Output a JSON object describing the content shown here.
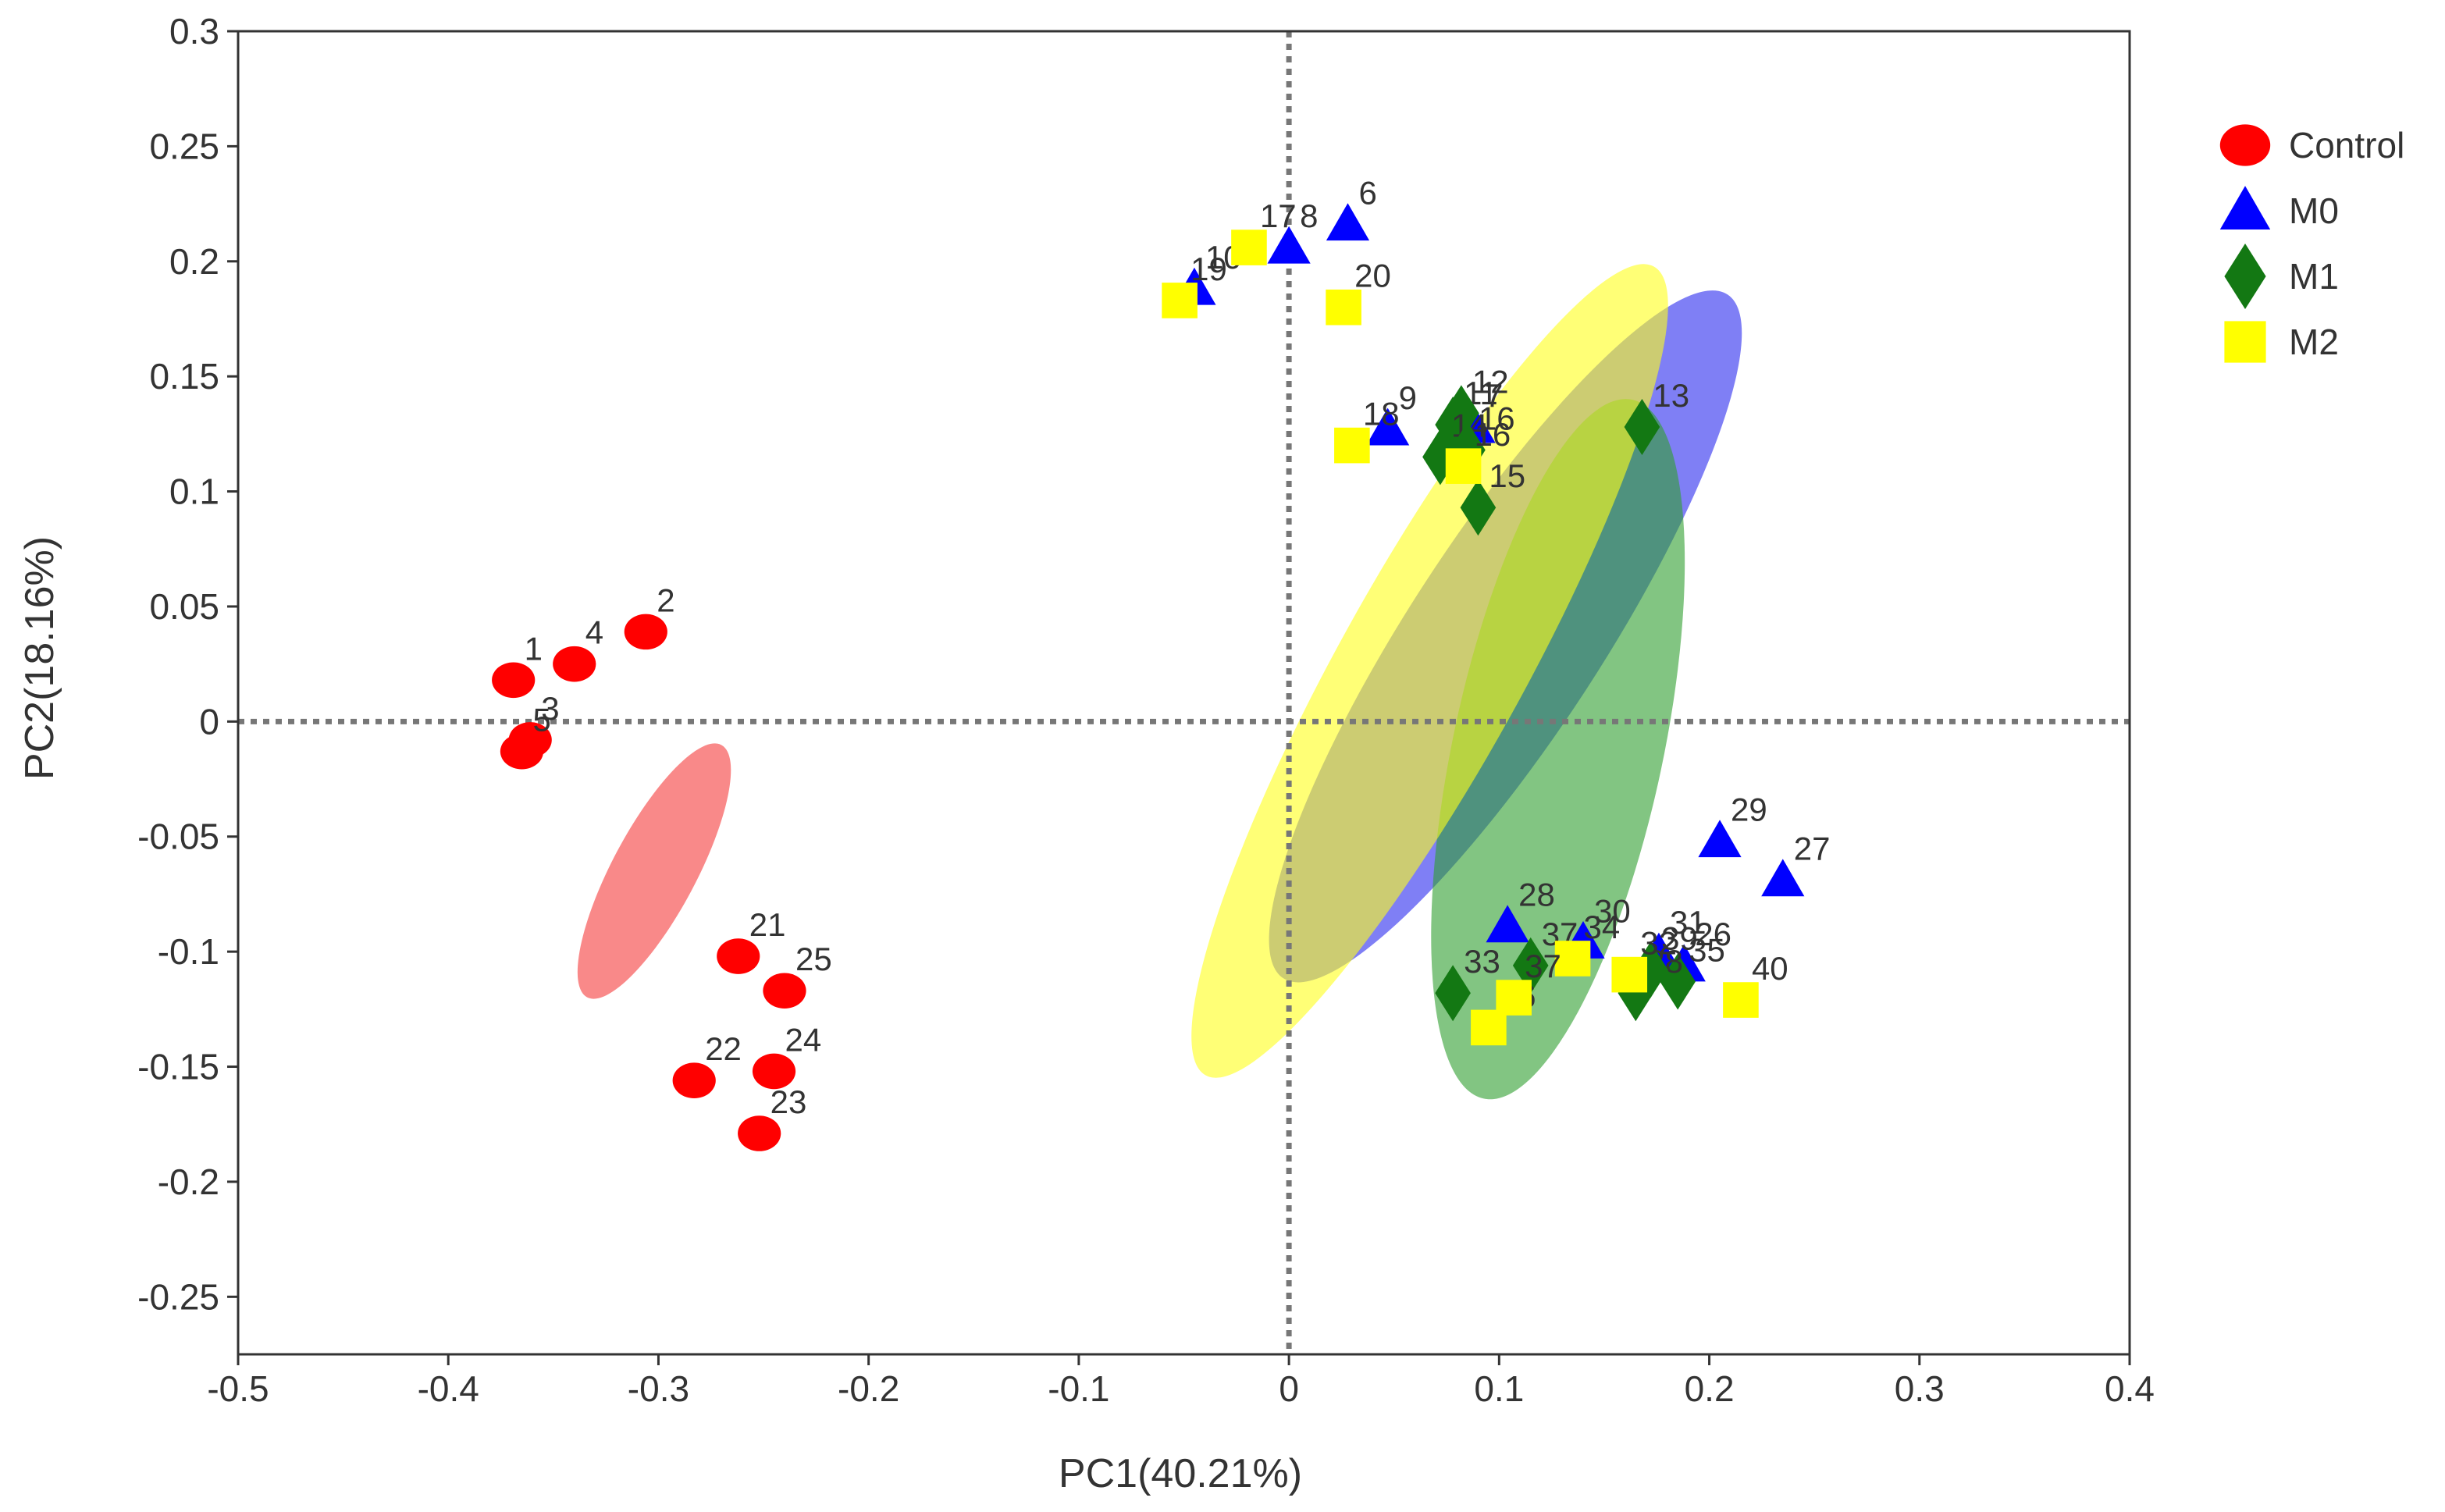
{
  "chart_data": {
    "type": "scatter",
    "title": "",
    "xlabel": "PC1(40.21%)",
    "ylabel": "PC2(18.16%)",
    "xlim": [
      -0.5,
      0.4
    ],
    "ylim": [
      -0.275,
      0.3
    ],
    "xticks": [
      "-0.5",
      "-0.4",
      "-0.3",
      "-0.2",
      "-0.1",
      "0",
      "0.1",
      "0.2",
      "0.3",
      "0.4"
    ],
    "yticks": [
      "0.3",
      "0.25",
      "0.2",
      "0.15",
      "0.1",
      "0.05",
      "0",
      "-0.05",
      "-0.1",
      "-0.15",
      "-0.2",
      "-0.25"
    ],
    "xtick_values": [
      -0.5,
      -0.4,
      -0.3,
      -0.2,
      -0.1,
      0,
      0.1,
      0.2,
      0.3,
      0.4
    ],
    "ytick_values": [
      0.3,
      0.25,
      0.2,
      0.15,
      0.1,
      0.05,
      0,
      -0.05,
      -0.1,
      -0.15,
      -0.2,
      -0.25
    ],
    "reference_lines": {
      "x": 0,
      "y": 0,
      "style": "dotted"
    },
    "legend_position": "right",
    "series": [
      {
        "name": "Control",
        "marker": "circle",
        "color": "#ff0000",
        "ellipse_color": "#f53b3b",
        "points": [
          {
            "label": "1",
            "x": -0.369,
            "y": 0.018
          },
          {
            "label": "2",
            "x": -0.306,
            "y": 0.039
          },
          {
            "label": "3",
            "x": -0.361,
            "y": -0.008
          },
          {
            "label": "4",
            "x": -0.34,
            "y": 0.025
          },
          {
            "label": "5",
            "x": -0.365,
            "y": -0.013
          },
          {
            "label": "21",
            "x": -0.262,
            "y": -0.102
          },
          {
            "label": "22",
            "x": -0.283,
            "y": -0.156
          },
          {
            "label": "23",
            "x": -0.252,
            "y": -0.179
          },
          {
            "label": "24",
            "x": -0.245,
            "y": -0.152
          },
          {
            "label": "25",
            "x": -0.24,
            "y": -0.117
          }
        ],
        "ellipse": {
          "cx": -0.302,
          "cy": -0.065,
          "rx": 0.068,
          "ry": 0.02,
          "angle": -62
        }
      },
      {
        "name": "M0",
        "marker": "triangle",
        "color": "#0000ff",
        "ellipse_color": "#2a2aee",
        "points": [
          {
            "label": "6",
            "x": 0.028,
            "y": 0.216
          },
          {
            "label": "7",
            "x": 0.088,
            "y": 0.128
          },
          {
            "label": "8",
            "x": 0.0,
            "y": 0.206
          },
          {
            "label": "9",
            "x": 0.047,
            "y": 0.127
          },
          {
            "label": "10",
            "x": -0.045,
            "y": 0.188
          },
          {
            "label": "26",
            "x": 0.188,
            "y": -0.106
          },
          {
            "label": "27",
            "x": 0.235,
            "y": -0.069
          },
          {
            "label": "28",
            "x": 0.104,
            "y": -0.089
          },
          {
            "label": "29",
            "x": 0.205,
            "y": -0.052
          },
          {
            "label": "30",
            "x": 0.14,
            "y": -0.096
          },
          {
            "label": "31",
            "x": 0.176,
            "y": -0.101
          }
        ],
        "ellipse": {
          "cx": 0.103,
          "cy": 0.037,
          "rx": 0.194,
          "ry": 0.046,
          "angle": -57
        }
      },
      {
        "name": "M1",
        "marker": "diamond",
        "color": "#137813",
        "ellipse_color": "#2e9e2e",
        "points": [
          {
            "label": "11",
            "x": 0.078,
            "y": 0.129
          },
          {
            "label": "12",
            "x": 0.082,
            "y": 0.134
          },
          {
            "label": "13",
            "x": 0.168,
            "y": 0.128
          },
          {
            "label": "14",
            "x": 0.072,
            "y": 0.115
          },
          {
            "label": "15",
            "x": 0.09,
            "y": 0.093
          },
          {
            "label": "16",
            "x": 0.085,
            "y": 0.118
          },
          {
            "label": "33",
            "x": 0.078,
            "y": -0.118
          },
          {
            "label": "35",
            "x": 0.185,
            "y": -0.113
          },
          {
            "label": "37",
            "x": 0.115,
            "y": -0.106
          },
          {
            "label": "38",
            "x": 0.165,
            "y": -0.118
          },
          {
            "label": "39",
            "x": 0.172,
            "y": -0.108
          }
        ],
        "ellipse": {
          "cx": 0.128,
          "cy": -0.012,
          "rx": 0.17,
          "ry": 0.05,
          "angle": -78
        }
      },
      {
        "name": "M2",
        "marker": "square",
        "color": "#ffff00",
        "ellipse_color": "#ffff1a",
        "points": [
          {
            "label": "17",
            "x": -0.019,
            "y": 0.206
          },
          {
            "label": "18",
            "x": 0.03,
            "y": 0.12
          },
          {
            "label": "19",
            "x": -0.052,
            "y": 0.183
          },
          {
            "label": "20",
            "x": 0.026,
            "y": 0.18
          },
          {
            "label": "34",
            "x": 0.135,
            "y": -0.103
          },
          {
            "label": "36",
            "x": 0.095,
            "y": -0.133
          },
          {
            "label": "32",
            "x": 0.162,
            "y": -0.11
          },
          {
            "label": "40",
            "x": 0.215,
            "y": -0.121
          },
          {
            "label": "16",
            "x": 0.083,
            "y": 0.111
          },
          {
            "label": "37",
            "x": 0.107,
            "y": -0.12
          }
        ],
        "ellipse": {
          "cx": 0.067,
          "cy": 0.022,
          "rx": 0.22,
          "ry": 0.044,
          "angle": -61
        }
      }
    ]
  }
}
